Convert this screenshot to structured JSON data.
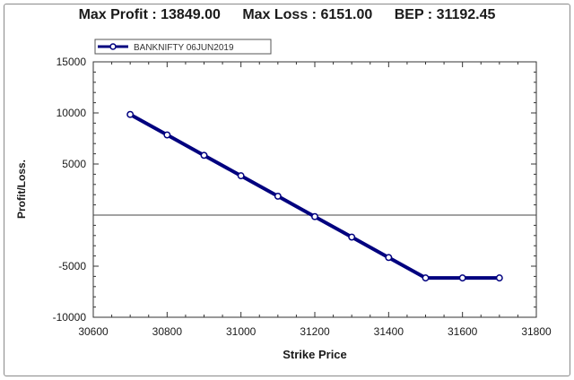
{
  "header": {
    "max_profit": "Max Profit : 13849.00",
    "max_loss": "Max Loss : 6151.00",
    "bep": "BEP : 31192.45"
  },
  "chart_data": {
    "type": "line",
    "title": "",
    "xlabel": "Strike Price",
    "ylabel": "Profit/Loss.",
    "xlim": [
      30600,
      31800
    ],
    "ylim": [
      -10000,
      15000
    ],
    "x_ticks": [
      30600,
      30800,
      31000,
      31200,
      31400,
      31600,
      31800
    ],
    "y_tick_labels": [
      {
        "value": 15000,
        "label": "15000"
      },
      {
        "value": 10000,
        "label": "10000"
      },
      {
        "value": 5000,
        "label": "5000"
      },
      {
        "value": -5000,
        "label": "-5000"
      },
      {
        "value": -10000,
        "label": "-10000"
      }
    ],
    "zero_line": true,
    "grid": false,
    "legend_position": "top-left",
    "series": [
      {
        "name": "BANKNIFTY 06JUN2019",
        "color": "#00007f",
        "x": [
          30700,
          30800,
          30900,
          31000,
          31100,
          31200,
          31300,
          31400,
          31500,
          31600,
          31700
        ],
        "y": [
          9849,
          7849,
          5849,
          3849,
          1849,
          -151,
          -2151,
          -4151,
          -6151,
          -6151,
          -6151
        ]
      }
    ]
  }
}
